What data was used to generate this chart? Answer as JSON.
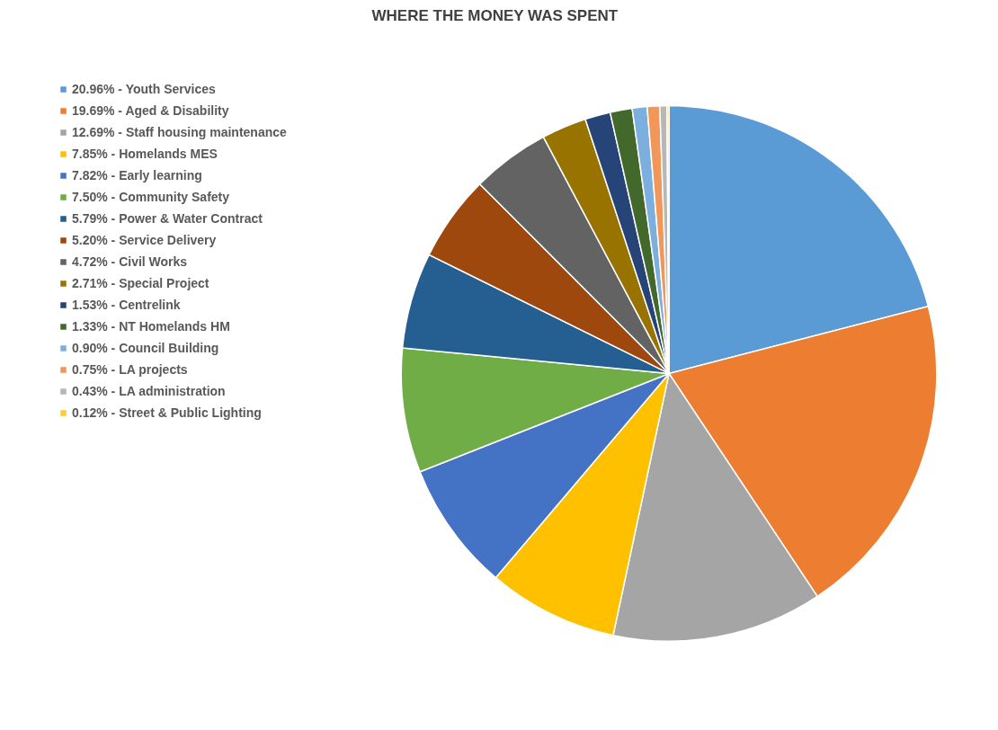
{
  "chart_data": {
    "type": "pie",
    "title": "WHERE THE MONEY WAS SPENT",
    "categories": [
      "20.96% - Youth Services",
      "19.69% - Aged & Disability",
      "12.69% - Staff housing maintenance",
      "7.85% - Homelands MES",
      "7.82% - Early learning",
      "7.50% - Community Safety",
      "5.79% - Power & Water Contract",
      "5.20% - Service Delivery",
      "4.72% - Civil Works",
      "2.71% - Special Project",
      "1.53% - Centrelink",
      "1.33% - NT Homelands HM",
      "0.90% - Council Building",
      "0.75% - LA projects",
      "0.43% - LA administration",
      "0.12% - Street & Public Lighting"
    ],
    "values": [
      20.96,
      19.69,
      12.69,
      7.85,
      7.82,
      7.5,
      5.79,
      5.2,
      4.72,
      2.71,
      1.53,
      1.33,
      0.9,
      0.75,
      0.43,
      0.12
    ],
    "colors": [
      "#5b9bd5",
      "#ed7d31",
      "#a5a5a5",
      "#ffc000",
      "#4472c4",
      "#70ad47",
      "#255e91",
      "#9e480e",
      "#636363",
      "#997300",
      "#264478",
      "#43682b",
      "#7cafdd",
      "#f1975a",
      "#b7b7b7",
      "#ffcd33"
    ],
    "legend": "left"
  }
}
